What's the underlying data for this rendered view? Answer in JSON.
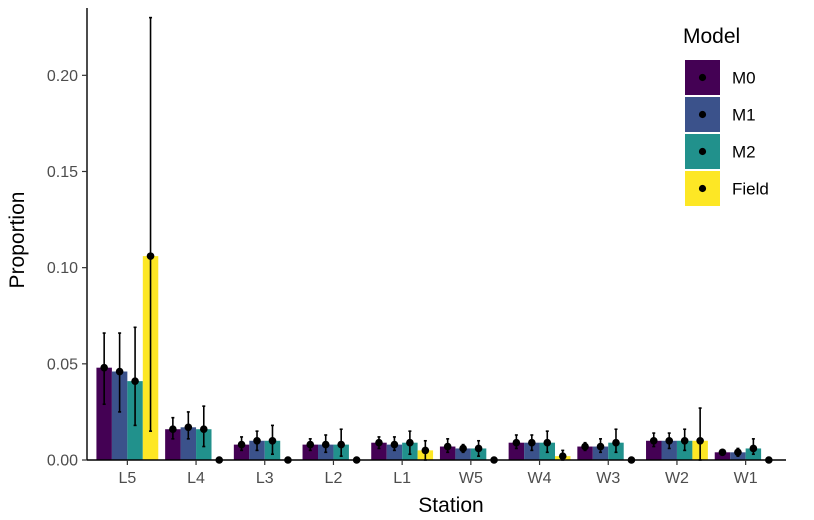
{
  "chart_data": {
    "type": "bar",
    "title": "",
    "xlabel": "Station",
    "ylabel": "Proportion",
    "ylim": [
      0,
      0.235
    ],
    "yticks": [
      "0.00",
      "0.05",
      "0.10",
      "0.15",
      "0.20"
    ],
    "ytick_values": [
      0,
      0.05,
      0.1,
      0.15,
      0.2
    ],
    "grid": false,
    "legend": {
      "title": "Model",
      "position": "top-right"
    },
    "categories": [
      "L5",
      "L4",
      "L3",
      "L2",
      "L1",
      "W5",
      "W4",
      "W3",
      "W2",
      "W1"
    ],
    "series": [
      {
        "name": "M0",
        "color": "#440154",
        "values": [
          0.048,
          0.016,
          0.008,
          0.008,
          0.009,
          0.007,
          0.009,
          0.007,
          0.01,
          0.004
        ],
        "lower": [
          0.029,
          0.011,
          0.005,
          0.005,
          0.006,
          0.004,
          0.006,
          0.005,
          0.007,
          0.003
        ],
        "upper": [
          0.066,
          0.022,
          0.012,
          0.011,
          0.012,
          0.011,
          0.013,
          0.009,
          0.014,
          0.005
        ]
      },
      {
        "name": "M1",
        "color": "#3b528b",
        "values": [
          0.046,
          0.017,
          0.01,
          0.008,
          0.008,
          0.006,
          0.009,
          0.007,
          0.01,
          0.004
        ],
        "lower": [
          0.025,
          0.011,
          0.005,
          0.004,
          0.005,
          0.004,
          0.005,
          0.004,
          0.006,
          0.002
        ],
        "upper": [
          0.066,
          0.025,
          0.015,
          0.013,
          0.012,
          0.008,
          0.013,
          0.011,
          0.014,
          0.006
        ]
      },
      {
        "name": "M2",
        "color": "#21918c",
        "values": [
          0.041,
          0.016,
          0.01,
          0.008,
          0.009,
          0.006,
          0.009,
          0.009,
          0.01,
          0.006
        ],
        "lower": [
          0.018,
          0.007,
          0.003,
          0.002,
          0.003,
          0.002,
          0.004,
          0.004,
          0.005,
          0.003
        ],
        "upper": [
          0.069,
          0.028,
          0.018,
          0.016,
          0.015,
          0.01,
          0.015,
          0.016,
          0.016,
          0.011
        ]
      },
      {
        "name": "Field",
        "color": "#fde725",
        "values": [
          0.106,
          0.0,
          0.0,
          0.0,
          0.005,
          0.0,
          0.002,
          0.0,
          0.01,
          0.0
        ],
        "lower": [
          0.015,
          0.0,
          0.0,
          0.0,
          0.0,
          0.0,
          0.0,
          0.0,
          0.0,
          0.0
        ],
        "upper": [
          0.23,
          0.0,
          0.0,
          0.0,
          0.01,
          0.0,
          0.005,
          0.0,
          0.027,
          0.0
        ]
      }
    ]
  }
}
